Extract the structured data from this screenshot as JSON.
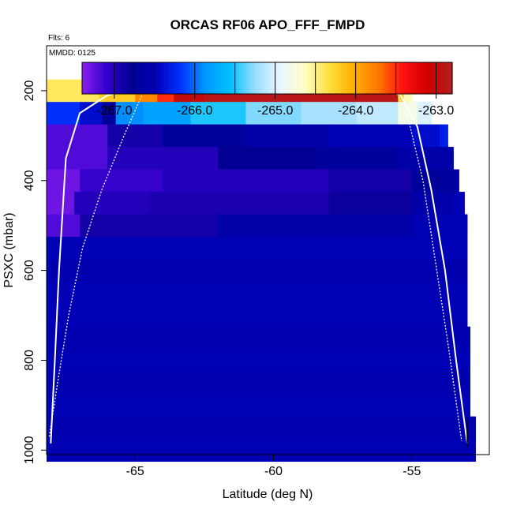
{
  "chart_data": {
    "type": "heatmap",
    "title": "ORCAS RF06 APO_FFF_FMPD",
    "flights_label": "Flts: 6",
    "date_label": "MMDD: 0125",
    "xlabel": "Latitude (deg N)",
    "ylabel": "PSXC (mbar)",
    "xlim": [
      -68.2,
      -52.2
    ],
    "ylim": [
      1010,
      100
    ],
    "x_ticks": [
      -65,
      -60,
      -55
    ],
    "x_tick_labels": [
      "-65",
      "-60",
      "-55"
    ],
    "y_ticks": [
      200,
      400,
      600,
      800,
      1000
    ],
    "y_tick_labels": [
      "200",
      "400",
      "600",
      "800",
      "1000"
    ],
    "colorbar": {
      "range": [
        -267.4,
        -262.8
      ],
      "ticks": [
        -267,
        -266,
        -265,
        -264,
        -263
      ],
      "tick_labels": [
        "-267.0",
        "-266.0",
        "-265.0",
        "-264.0",
        "-263.0"
      ],
      "colors": [
        "#8a1ff0",
        "#3300cc",
        "#00008f",
        "#0000b8",
        "#0033ff",
        "#0099ff",
        "#00c0ff",
        "#99ddff",
        "#e8f6ff",
        "#ffffc8",
        "#ffe040",
        "#ffb000",
        "#ff7800",
        "#ff1010",
        "#d00000",
        "#b02020"
      ]
    },
    "series": [
      {
        "p": 200,
        "dp": 50,
        "cells": [
          [
            -68.2,
            -66.3,
            -264.4
          ],
          [
            -66.3,
            -65.0,
            -264.2
          ],
          [
            -65.0,
            -64.2,
            -263.8
          ],
          [
            -64.2,
            -63.6,
            -263.5
          ],
          [
            -63.6,
            -62.5,
            -263.0
          ],
          [
            -62.5,
            -60.0,
            -262.9
          ],
          [
            -60.0,
            -56.5,
            -262.9
          ],
          [
            -56.5,
            -55.5,
            -262.9
          ],
          [
            -55.5,
            -55.3,
            -264.2
          ],
          [
            -55.3,
            -55.0,
            -264.6
          ]
        ]
      },
      {
        "p": 250,
        "dp": 50,
        "cells": [
          [
            -68.2,
            -67.0,
            -266.2
          ],
          [
            -67.0,
            -66.2,
            -266.4
          ],
          [
            -66.2,
            -65.7,
            -266.7
          ],
          [
            -65.7,
            -64.7,
            -265.9
          ],
          [
            -64.7,
            -63.0,
            -265.8
          ],
          [
            -63.0,
            -61.0,
            -265.5
          ],
          [
            -61.0,
            -59.0,
            -265.3
          ],
          [
            -59.0,
            -57.0,
            -265.2
          ],
          [
            -57.0,
            -55.5,
            -265.1
          ],
          [
            -55.5,
            -54.8,
            -264.8
          ],
          [
            -54.8,
            -54.3,
            -265.0
          ]
        ]
      },
      {
        "p": 300,
        "dp": 50,
        "cells": [
          [
            -68.2,
            -66.0,
            -267.2
          ],
          [
            -66.0,
            -64.0,
            -266.9
          ],
          [
            -64.0,
            -61.0,
            -266.7
          ],
          [
            -61.0,
            -58.0,
            -266.6
          ],
          [
            -58.0,
            -55.0,
            -266.5
          ],
          [
            -55.0,
            -54.0,
            -266.4
          ],
          [
            -54.0,
            -53.7,
            -266.3
          ]
        ]
      },
      {
        "p": 350,
        "dp": 50,
        "cells": [
          [
            -68.2,
            -66.0,
            -267.2
          ],
          [
            -66.0,
            -62.0,
            -267.0
          ],
          [
            -62.0,
            -58.5,
            -266.8
          ],
          [
            -58.5,
            -55.5,
            -266.7
          ],
          [
            -55.5,
            -53.5,
            -266.6
          ]
        ]
      },
      {
        "p": 400,
        "dp": 50,
        "cells": [
          [
            -68.2,
            -67.0,
            -267.3
          ],
          [
            -67.0,
            -64.0,
            -267.1
          ],
          [
            -64.0,
            -58.0,
            -267.0
          ],
          [
            -58.0,
            -55.0,
            -266.9
          ],
          [
            -55.0,
            -53.5,
            -266.7
          ],
          [
            -53.5,
            -53.3,
            -266.6
          ]
        ]
      },
      {
        "p": 450,
        "dp": 50,
        "cells": [
          [
            -68.2,
            -67.2,
            -267.3
          ],
          [
            -67.2,
            -64.5,
            -267.0
          ],
          [
            -64.5,
            -58.0,
            -266.95
          ],
          [
            -58.0,
            -55.0,
            -266.85
          ],
          [
            -55.0,
            -53.5,
            -266.6
          ],
          [
            -53.5,
            -53.1,
            -266.5
          ]
        ]
      },
      {
        "p": 500,
        "dp": 50,
        "cells": [
          [
            -68.2,
            -67.0,
            -267.2
          ],
          [
            -67.0,
            -62.0,
            -266.9
          ],
          [
            -62.0,
            -55.0,
            -266.6
          ],
          [
            -55.0,
            -53.0,
            -266.5
          ]
        ]
      },
      {
        "p": 550,
        "dp": 50,
        "cells": [
          [
            -68.2,
            -53.0,
            -266.5
          ]
        ]
      },
      {
        "p": 600,
        "dp": 50,
        "cells": [
          [
            -68.2,
            -53.0,
            -266.55
          ]
        ]
      },
      {
        "p": 650,
        "dp": 50,
        "cells": [
          [
            -68.2,
            -53.0,
            -266.5
          ]
        ]
      },
      {
        "p": 700,
        "dp": 50,
        "cells": [
          [
            -68.2,
            -53.0,
            -266.5
          ]
        ]
      },
      {
        "p": 750,
        "dp": 50,
        "cells": [
          [
            -68.2,
            -52.9,
            -266.55
          ]
        ]
      },
      {
        "p": 800,
        "dp": 50,
        "cells": [
          [
            -68.2,
            -52.9,
            -266.5
          ]
        ]
      },
      {
        "p": 850,
        "dp": 50,
        "cells": [
          [
            -68.2,
            -52.9,
            -266.55
          ]
        ]
      },
      {
        "p": 900,
        "dp": 50,
        "cells": [
          [
            -68.2,
            -52.9,
            -266.5
          ]
        ]
      },
      {
        "p": 950,
        "dp": 50,
        "cells": [
          [
            -68.2,
            -52.7,
            -266.55
          ]
        ]
      },
      {
        "p": 1000,
        "dp": 50,
        "cells": [
          [
            -68.2,
            -52.7,
            -266.5
          ]
        ]
      }
    ],
    "flight_tracks": [
      [
        [
          -68.05,
          985
        ],
        [
          -67.9,
          800
        ],
        [
          -67.75,
          600
        ],
        [
          -67.6,
          450
        ],
        [
          -67.5,
          350
        ],
        [
          -67.0,
          250
        ],
        [
          -66.0,
          210
        ],
        [
          -64.5,
          190
        ],
        [
          -62.0,
          185
        ],
        [
          -56.5,
          182
        ],
        [
          -55.5,
          200
        ],
        [
          -54.8,
          280
        ],
        [
          -54.3,
          420
        ],
        [
          -53.8,
          600
        ],
        [
          -53.4,
          800
        ],
        [
          -53.0,
          985
        ]
      ],
      [
        [
          -68.1,
          970
        ],
        [
          -67.8,
          850
        ],
        [
          -67.4,
          700
        ],
        [
          -66.9,
          550
        ],
        [
          -66.2,
          420
        ],
        [
          -65.4,
          300
        ],
        [
          -64.9,
          230
        ],
        [
          -64.6,
          190
        ],
        [
          -62.0,
          184
        ],
        [
          -56.0,
          182
        ],
        [
          -55.6,
          195
        ],
        [
          -55.1,
          270
        ],
        [
          -54.6,
          400
        ],
        [
          -54.2,
          560
        ],
        [
          -53.7,
          760
        ],
        [
          -53.2,
          980
        ]
      ]
    ]
  }
}
